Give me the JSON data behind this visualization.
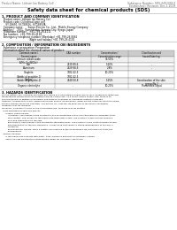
{
  "header_left": "Product Name: Lithium Ion Battery Cell",
  "header_right_line1": "Substance Number: SDS-049-008-0",
  "header_right_line2": "Established / Revision: Dec.1 2019",
  "title": "Safety data sheet for chemical products (SDS)",
  "section1_title": "1. PRODUCT AND COMPANY IDENTIFICATION",
  "section1_items": [
    "  Product name: Lithium Ion Battery Cell",
    "  Product code: Cylindrical-type cell",
    "     SY-18650, SY-18650L, SY-18650A",
    "  Company name:      Sanyo Electric Co., Ltd.,  Mobile Energy Company",
    "  Address:    2001,  Kamitanaka, Sumoto City, Hyogo, Japan",
    "  Telephone number:   +81-799-26-4111",
    "  Fax number:  +81-799-26-4128",
    "  Emergency telephone number (Weekday) +81-799-26-0662",
    "                                   (Night and holiday) +81-799-26-4101"
  ],
  "section2_title": "2. COMPOSITION / INFORMATION ON INGREDIENTS",
  "section2_sub": "  Substance or preparation: Preparation",
  "section2_sub2": "  Information about the chemical nature of product:",
  "table_headers": [
    "Common name /\nSeveral name",
    "CAS number",
    "Concentration /\nConcentration range",
    "Classification and\nhazard labeling"
  ],
  "table_rows": [
    [
      "Lithium cobalt oxide\n(LiMn-Co-NiO2x)",
      "-",
      "30-50%",
      ""
    ],
    [
      "Iron",
      "7439-89-6",
      "5-20%",
      "-"
    ],
    [
      "Aluminum",
      "7429-90-5",
      "2-8%",
      "-"
    ],
    [
      "Graphite\n(Artificial graphite-1)\n(Artificial graphite-2)",
      "7782-42-5\n7782-42-5",
      "10-20%",
      ""
    ],
    [
      "Copper",
      "7440-50-8",
      "5-15%",
      "Sensitization of the skin\ngroup No.2"
    ],
    [
      "Organic electrolyte",
      "-",
      "10-20%",
      "Flammable liquid"
    ]
  ],
  "section3_title": "3. HAZARDS IDENTIFICATION",
  "section3_para1": [
    "For the battery cell, chemical materials are stored in a hermetically-sealed metal case, designed to withstand",
    "temperatures during products-conditions during normal use. As a result, during normal-use, there is no",
    "physical danger of ignition or explosion and there is no danger of hazardous materials leakage.",
    "However, if exposed to a fire, added mechanical shocks, decomposes, under electro-chemical reactions cause",
    "the gas release cannot be operated. The battery cell case will be breached of fire-prone, hazardous",
    "materials may be released.",
    "Moreover, if heated strongly by the surrounding fire, solid gas may be emitted."
  ],
  "section3_bullet": "  Most important hazard and effects:",
  "section3_human": "      Human health effects:",
  "section3_human_items": [
    "         Inhalation: The release of the electrolyte has an anesthesia action and stimulates in respiratory tract.",
    "         Skin contact: The release of the electrolyte stimulates a skin. The electrolyte skin contact causes a",
    "         sore and stimulation on the skin.",
    "         Eye contact: The release of the electrolyte stimulates eyes. The electrolyte eye contact causes at sore",
    "         and stimulation on the eye. Especially, a substance that causes a strong inflammation of the eye is",
    "         contained.",
    "         Environmental effects: Since a battery cell remains in the environment, do not throw out it into the",
    "         environment."
  ],
  "section3_specific": "  Specific hazards:",
  "section3_specific_items": [
    "      If the electrolyte contacts with water, it will generate detrimental hydrogen fluoride.",
    "      Since the said electrolyte is inflammable liquid, do not bring close to fire."
  ],
  "bg_color": "#ffffff",
  "text_color": "#000000",
  "line_color": "#888888",
  "gray_text": "#666666"
}
